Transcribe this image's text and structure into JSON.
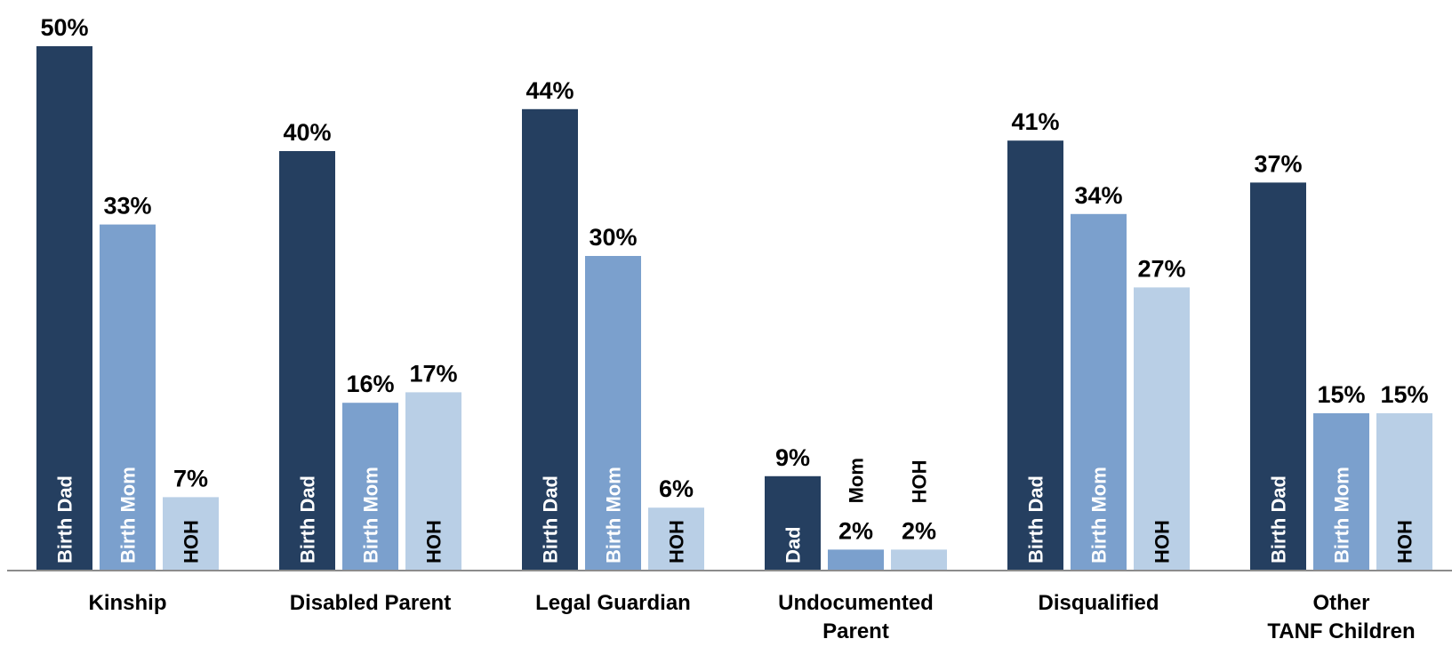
{
  "chart_data": {
    "type": "bar",
    "title": "",
    "xlabel": "",
    "ylabel": "",
    "ylim": [
      0,
      50
    ],
    "grid": false,
    "legend": "none",
    "categories": [
      [
        "Kinship"
      ],
      [
        "Disabled Parent"
      ],
      [
        "Legal Guardian"
      ],
      [
        "Undocumented",
        "Parent"
      ],
      [
        "Disqualified"
      ],
      [
        "Other",
        "TANF Children"
      ]
    ],
    "series": [
      {
        "labels": [
          "Birth Dad",
          "Birth Dad",
          "Birth Dad",
          "Dad",
          "Birth Dad",
          "Birth Dad"
        ],
        "values": [
          50,
          40,
          44,
          9,
          41,
          37
        ],
        "value_labels": [
          "50%",
          "40%",
          "44%",
          "9%",
          "41%",
          "37%"
        ],
        "color": "#253f60"
      },
      {
        "labels": [
          "Birth Mom",
          "Birth Mom",
          "Birth Mom",
          "Mom",
          "Birth Mom",
          "Birth Mom"
        ],
        "values": [
          33,
          16,
          30,
          2,
          34,
          15
        ],
        "value_labels": [
          "33%",
          "16%",
          "30%",
          "2%",
          "34%",
          "15%"
        ],
        "color": "#7ba0cd"
      },
      {
        "labels": [
          "HOH",
          "HOH",
          "HOH",
          "HOH",
          "HOH",
          "HOH"
        ],
        "values": [
          7,
          17,
          6,
          2,
          27,
          15
        ],
        "value_labels": [
          "7%",
          "17%",
          "6%",
          "2%",
          "27%",
          "15%"
        ],
        "color": "#b9cfe6"
      }
    ]
  }
}
